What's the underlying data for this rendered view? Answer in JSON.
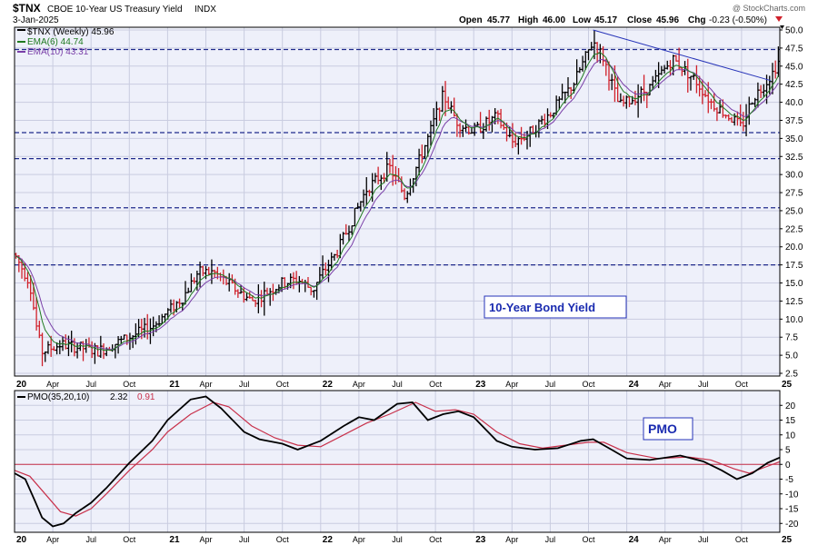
{
  "header": {
    "symbol": "$TNX",
    "name": "CBOE 10-Year US Treasury Yield",
    "exchange": "INDX",
    "date": "3-Jan-2025",
    "open_label": "Open",
    "open": "45.77",
    "high_label": "High",
    "high": "46.00",
    "low_label": "Low",
    "low": "45.17",
    "close_label": "Close",
    "close": "45.96",
    "chg_label": "Chg",
    "chg": "-0.23 (-0.50%)",
    "watermark": "@ StockCharts.com"
  },
  "legend": {
    "price": "$TNX (Weekly) 45.96",
    "ema6": "EMA(6) 44.74",
    "ema10": "EMA(10) 43.31",
    "pmo_label": "PMO(35,20,10)",
    "pmo_value": "2.32",
    "pmo_signal": "0.91"
  },
  "annotations": {
    "price_note": "10-Year Bond Yield",
    "pmo_note": "PMO"
  },
  "colors": {
    "panel_bg": "#eef0fa",
    "grid": "#c9cce0",
    "up_bar": "#000000",
    "down_bar": "#d0202a",
    "ema6": "#1f7a1f",
    "ema10": "#7a3fa8",
    "trendline": "#2633b8",
    "dashed": "#1f2a8c",
    "pmo": "#000000",
    "pmo_signal": "#c8304a",
    "zero_line": "#c8304a",
    "annot_text": "#1a2bb0"
  },
  "chart_data": [
    {
      "type": "ohlc",
      "title": "$TNX CBOE 10-Year US Treasury Yield INDX",
      "ylim": [
        2.5,
        50.0
      ],
      "y_ticks": [
        "2.5",
        "5.0",
        "7.5",
        "10.0",
        "12.5",
        "15.0",
        "17.5",
        "20.0",
        "22.5",
        "25.0",
        "27.5",
        "30.0",
        "32.5",
        "35.0",
        "37.5",
        "40.0",
        "42.5",
        "45.0",
        "47.5",
        "50.0"
      ],
      "x_range": [
        2020.0,
        2025.0
      ],
      "x_ticks": [
        {
          "label": "20",
          "t": 2020.0,
          "year": true
        },
        {
          "label": "Apr",
          "t": 2020.25
        },
        {
          "label": "Jul",
          "t": 2020.5
        },
        {
          "label": "Oct",
          "t": 2020.75
        },
        {
          "label": "21",
          "t": 2021.0,
          "year": true
        },
        {
          "label": "Apr",
          "t": 2021.25
        },
        {
          "label": "Jul",
          "t": 2021.5
        },
        {
          "label": "Oct",
          "t": 2021.75
        },
        {
          "label": "22",
          "t": 2022.0,
          "year": true
        },
        {
          "label": "Apr",
          "t": 2022.25
        },
        {
          "label": "Jul",
          "t": 2022.5
        },
        {
          "label": "Oct",
          "t": 2022.75
        },
        {
          "label": "23",
          "t": 2023.0,
          "year": true
        },
        {
          "label": "Apr",
          "t": 2023.25
        },
        {
          "label": "Jul",
          "t": 2023.5
        },
        {
          "label": "Oct",
          "t": 2023.75
        },
        {
          "label": "24",
          "t": 2024.0,
          "year": true
        },
        {
          "label": "Apr",
          "t": 2024.25
        },
        {
          "label": "Jul",
          "t": 2024.5
        },
        {
          "label": "Oct",
          "t": 2024.75
        },
        {
          "label": "25",
          "t": 2025.0,
          "year": true
        }
      ],
      "price_path": [
        [
          2020.0,
          19.0
        ],
        [
          2020.1,
          15.0
        ],
        [
          2020.15,
          8.0
        ],
        [
          2020.18,
          5.5
        ],
        [
          2020.3,
          6.5
        ],
        [
          2020.45,
          6.0
        ],
        [
          2020.55,
          5.6
        ],
        [
          2020.75,
          7.5
        ],
        [
          2020.9,
          9.0
        ],
        [
          2021.0,
          11.0
        ],
        [
          2021.1,
          13.0
        ],
        [
          2021.2,
          16.5
        ],
        [
          2021.3,
          16.5
        ],
        [
          2021.45,
          14.0
        ],
        [
          2021.55,
          12.5
        ],
        [
          2021.75,
          15.0
        ],
        [
          2021.85,
          15.5
        ],
        [
          2021.95,
          14.0
        ],
        [
          2022.0,
          16.0
        ],
        [
          2022.1,
          19.0
        ],
        [
          2022.2,
          23.5
        ],
        [
          2022.3,
          28.0
        ],
        [
          2022.45,
          31.0
        ],
        [
          2022.55,
          27.0
        ],
        [
          2022.7,
          35.0
        ],
        [
          2022.8,
          41.0
        ],
        [
          2022.9,
          37.0
        ],
        [
          2023.0,
          36.0
        ],
        [
          2023.15,
          38.0
        ],
        [
          2023.25,
          34.5
        ],
        [
          2023.35,
          35.5
        ],
        [
          2023.5,
          38.5
        ],
        [
          2023.65,
          42.5
        ],
        [
          2023.78,
          48.5
        ],
        [
          2023.85,
          46.0
        ],
        [
          2023.95,
          39.5
        ],
        [
          2024.0,
          40.0
        ],
        [
          2024.15,
          42.0
        ],
        [
          2024.3,
          46.0
        ],
        [
          2024.45,
          43.0
        ],
        [
          2024.55,
          40.0
        ],
        [
          2024.7,
          37.5
        ],
        [
          2024.75,
          36.5
        ],
        [
          2024.82,
          40.5
        ],
        [
          2024.9,
          42.5
        ],
        [
          2024.95,
          44.0
        ],
        [
          2025.0,
          45.96
        ]
      ],
      "trendline": {
        "from": [
          2023.78,
          50.0
        ],
        "to": [
          2025.0,
          43.0
        ]
      },
      "horizontal_levels": [
        47.3,
        35.8,
        32.2,
        25.4,
        17.5
      ]
    },
    {
      "type": "line",
      "title": "PMO(35,20,10) 2.32 0.91",
      "ylim": [
        -23,
        25
      ],
      "y_ticks": [
        "-20",
        "-15",
        "-10",
        "-5",
        "0",
        "5",
        "10",
        "15",
        "20"
      ],
      "series": [
        {
          "name": "PMO(35,20,10)",
          "points": [
            [
              2020.0,
              -3.0
            ],
            [
              2020.07,
              -5.0
            ],
            [
              2020.13,
              -12.0
            ],
            [
              2020.18,
              -18.0
            ],
            [
              2020.25,
              -21.0
            ],
            [
              2020.32,
              -20.0
            ],
            [
              2020.4,
              -16.5
            ],
            [
              2020.5,
              -13.0
            ],
            [
              2020.6,
              -8.0
            ],
            [
              2020.75,
              0.5
            ],
            [
              2020.9,
              8.0
            ],
            [
              2021.0,
              15.0
            ],
            [
              2021.15,
              22.0
            ],
            [
              2021.25,
              23.0
            ],
            [
              2021.35,
              19.0
            ],
            [
              2021.5,
              11.0
            ],
            [
              2021.6,
              8.5
            ],
            [
              2021.75,
              7.0
            ],
            [
              2021.85,
              5.0
            ],
            [
              2022.0,
              8.0
            ],
            [
              2022.15,
              13.0
            ],
            [
              2022.25,
              16.0
            ],
            [
              2022.35,
              15.0
            ],
            [
              2022.5,
              20.5
            ],
            [
              2022.6,
              21.0
            ],
            [
              2022.7,
              15.0
            ],
            [
              2022.8,
              17.0
            ],
            [
              2022.9,
              18.0
            ],
            [
              2023.0,
              16.0
            ],
            [
              2023.15,
              8.0
            ],
            [
              2023.25,
              6.0
            ],
            [
              2023.4,
              5.0
            ],
            [
              2023.55,
              5.5
            ],
            [
              2023.7,
              8.0
            ],
            [
              2023.78,
              8.5
            ],
            [
              2023.9,
              5.0
            ],
            [
              2024.0,
              2.0
            ],
            [
              2024.15,
              1.5
            ],
            [
              2024.35,
              3.0
            ],
            [
              2024.5,
              1.0
            ],
            [
              2024.62,
              -2.0
            ],
            [
              2024.72,
              -5.0
            ],
            [
              2024.82,
              -3.0
            ],
            [
              2024.92,
              0.5
            ],
            [
              2025.0,
              2.32
            ]
          ]
        },
        {
          "name": "0.91",
          "points": [
            [
              2020.0,
              -2.0
            ],
            [
              2020.1,
              -4.0
            ],
            [
              2020.2,
              -10.0
            ],
            [
              2020.3,
              -16.0
            ],
            [
              2020.4,
              -17.5
            ],
            [
              2020.5,
              -15.0
            ],
            [
              2020.6,
              -10.0
            ],
            [
              2020.75,
              -2.0
            ],
            [
              2020.9,
              5.0
            ],
            [
              2021.0,
              11.0
            ],
            [
              2021.15,
              17.0
            ],
            [
              2021.3,
              21.0
            ],
            [
              2021.4,
              19.5
            ],
            [
              2021.55,
              13.0
            ],
            [
              2021.7,
              9.0
            ],
            [
              2021.85,
              6.5
            ],
            [
              2022.0,
              6.0
            ],
            [
              2022.15,
              10.0
            ],
            [
              2022.3,
              14.0
            ],
            [
              2022.45,
              17.0
            ],
            [
              2022.62,
              21.0
            ],
            [
              2022.75,
              18.0
            ],
            [
              2022.88,
              18.5
            ],
            [
              2023.0,
              17.0
            ],
            [
              2023.15,
              11.0
            ],
            [
              2023.3,
              7.0
            ],
            [
              2023.45,
              5.5
            ],
            [
              2023.6,
              6.5
            ],
            [
              2023.75,
              7.5
            ],
            [
              2023.85,
              7.5
            ],
            [
              2024.0,
              4.0
            ],
            [
              2024.2,
              2.0
            ],
            [
              2024.4,
              2.5
            ],
            [
              2024.55,
              1.5
            ],
            [
              2024.7,
              -1.5
            ],
            [
              2024.8,
              -3.0
            ],
            [
              2024.9,
              -1.0
            ],
            [
              2025.0,
              0.91
            ]
          ]
        }
      ],
      "zero_line": 0
    }
  ]
}
